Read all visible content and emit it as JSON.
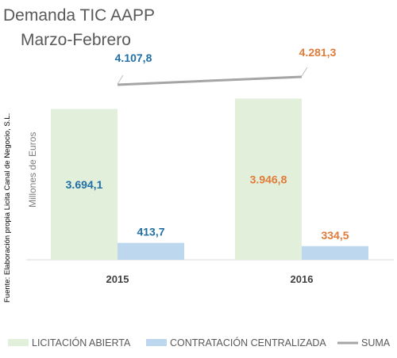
{
  "chart_data": {
    "type": "bar",
    "title_line1": "Demanda TIC AAPP",
    "title_line2": "Marzo-Febrero",
    "ylabel": "Millones de Euros",
    "source": "Fuente: Elaboración propia Licita Canal de Negocio, S.L.",
    "categories": [
      "2015",
      "2016"
    ],
    "ylim": [
      0,
      4500
    ],
    "grid": false,
    "legend_position": "bottom",
    "series": [
      {
        "name": "LICITACIÓN ABIERTA",
        "values": [
          3694.1,
          3946.8
        ],
        "labels": [
          "3.694,1",
          "3.946,8"
        ],
        "color": "#e2efda"
      },
      {
        "name": "CONTRATACIÓN CENTRALIZADA",
        "values": [
          413.7,
          334.5
        ],
        "labels": [
          "413,7",
          "334,5"
        ],
        "color": "#bdd7ee"
      }
    ],
    "line_series": {
      "name": "SUMA",
      "values": [
        4107.8,
        4281.3
      ],
      "labels": [
        "4.107,8",
        "4.281,3"
      ],
      "color": "#a5a5a5"
    },
    "label_colors": [
      "#1f6fa6",
      "#e07b39"
    ]
  }
}
